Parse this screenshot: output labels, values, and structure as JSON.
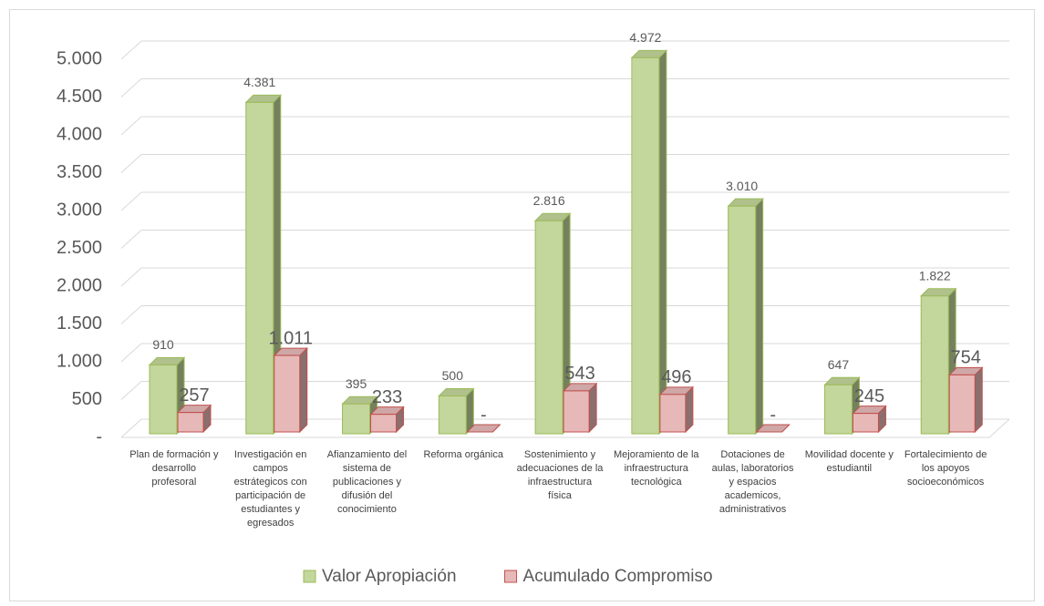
{
  "chart_data": {
    "type": "bar3d",
    "categories": [
      "Plan de formación y desarrollo profesoral",
      "Investigación en campos estrátegicos con participación de estudiantes y egresados",
      "Afianzamiento del sistema de publicaciones y difusión del conocimiento",
      "Reforma orgánica",
      "Sostenimiento y adecuaciones de la infraestructura física",
      "Mejoramiento de la infraestructura tecnológica",
      "Dotaciones de aulas, laboratorios y espacios academicos, administrativos",
      "Movilidad docente y estudiantil",
      "Fortalecimiento de los apoyos socioeconómicos"
    ],
    "series": [
      {
        "name": "Valor Apropiación",
        "color": "#c3d69b",
        "values": [
          910,
          4381,
          395,
          500,
          2816,
          4972,
          3010,
          647,
          1822
        ],
        "value_labels": [
          "910",
          "4.381",
          "395",
          "500",
          "2.816",
          "4.972",
          "3.010",
          "647",
          "1.822"
        ]
      },
      {
        "name": "Acumulado Compromiso",
        "color": "#e6b9b8",
        "values": [
          257,
          1011,
          233,
          0,
          543,
          496,
          0,
          245,
          754
        ],
        "value_labels": [
          "257",
          "1.011",
          "233",
          "-",
          "543",
          "496",
          "-",
          "245",
          "754"
        ]
      }
    ],
    "ylim": [
      0,
      5000
    ],
    "yticks": [
      {
        "value": 0,
        "label": "-"
      },
      500,
      {
        "value": 1000,
        "label": "1.000"
      },
      {
        "value": 1500,
        "label": "1.500"
      },
      {
        "value": 2000,
        "label": "2.000"
      },
      {
        "value": 2500,
        "label": "2.500"
      },
      {
        "value": 3000,
        "label": "3.000"
      },
      {
        "value": 3500,
        "label": "3.500"
      },
      {
        "value": 4000,
        "label": "4.000"
      },
      {
        "value": 4500,
        "label": "4.500"
      },
      {
        "value": 5000,
        "label": "5.000"
      }
    ],
    "grid": true,
    "legend": "bottom"
  }
}
